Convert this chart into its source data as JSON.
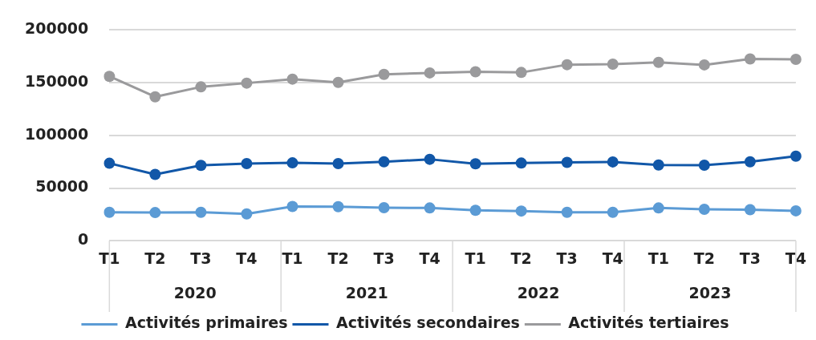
{
  "chart_data": {
    "type": "line",
    "categories": [
      "T1",
      "T2",
      "T3",
      "T4",
      "T1",
      "T2",
      "T3",
      "T4",
      "T1",
      "T2",
      "T3",
      "T4",
      "T1",
      "T2",
      "T3",
      "T4"
    ],
    "annotations": [
      "2020",
      "2021",
      "2022",
      "2023"
    ],
    "series": [
      {
        "name": "Activités primaires",
        "color": "#5b9bd5",
        "values": [
          27000,
          26700,
          27000,
          25500,
          32500,
          32300,
          31300,
          31100,
          28900,
          28200,
          27000,
          27000,
          31100,
          29800,
          29400,
          28400
        ]
      },
      {
        "name": "Activités secondaires",
        "color": "#1157a8",
        "values": [
          73500,
          62900,
          71500,
          73200,
          73900,
          73200,
          74900,
          77300,
          73000,
          73700,
          74400,
          74800,
          71900,
          71700,
          74900,
          80200
        ]
      },
      {
        "name": "Activités tertiaires",
        "color": "#9a9a9c",
        "values": [
          156000,
          136600,
          146000,
          149600,
          153400,
          150300,
          157900,
          159300,
          160400,
          159700,
          167100,
          167600,
          169300,
          166900,
          172500,
          172200
        ]
      }
    ],
    "ylim": [
      0,
      200000
    ],
    "yticks": [
      0,
      50000,
      100000,
      150000,
      200000
    ],
    "grid": "y",
    "legend": "bottom",
    "marker": "circle",
    "line_style": "solid"
  }
}
